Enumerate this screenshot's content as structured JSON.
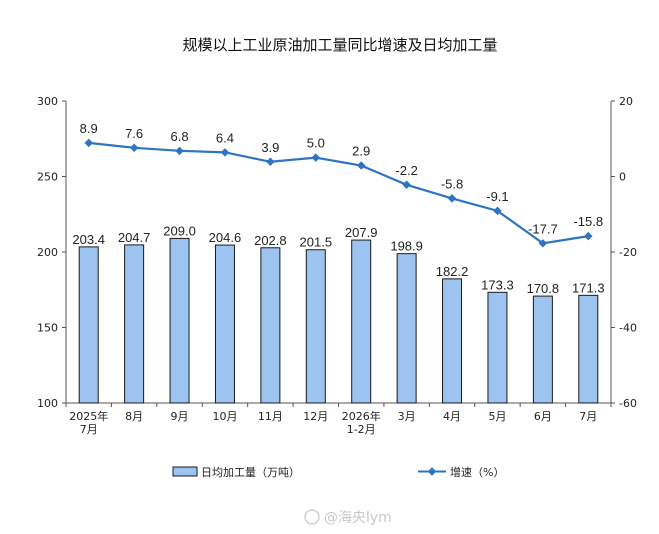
{
  "chart_data": {
    "type": "bar",
    "title": "规模以上工业原油加工量同比增速及日均加工量",
    "categories": [
      [
        "2025年",
        "7月"
      ],
      [
        "8月"
      ],
      [
        "9月"
      ],
      [
        "10月"
      ],
      [
        "11月"
      ],
      [
        "12月"
      ],
      [
        "2026年",
        "1-2月"
      ],
      [
        "3月"
      ],
      [
        "4月"
      ],
      [
        "5月"
      ],
      [
        "6月"
      ],
      [
        "7月"
      ]
    ],
    "series": [
      {
        "name": "日均加工量（万吨）",
        "type": "bar",
        "axis": "left",
        "values": [
          203.4,
          204.7,
          209.0,
          204.6,
          202.8,
          201.5,
          207.9,
          198.9,
          182.2,
          173.3,
          170.8,
          171.3
        ],
        "labels": [
          "203.4",
          "204.7",
          "209.0",
          "204.6",
          "202.8",
          "201.5",
          "207.9",
          "198.9",
          "182.2",
          "173.3",
          "170.8",
          "171.3"
        ],
        "color": "#9dc3f0",
        "edge": "#1a1a1a"
      },
      {
        "name": "增速（%）",
        "type": "line",
        "axis": "right",
        "values": [
          8.9,
          7.6,
          6.8,
          6.4,
          3.9,
          5.0,
          2.9,
          -2.2,
          -5.8,
          -9.1,
          -17.7,
          -15.8
        ],
        "labels": [
          "8.9",
          "7.6",
          "6.8",
          "6.4",
          "3.9",
          "5.0",
          "2.9",
          "-2.2",
          "-5.8",
          "-9.1",
          "-17.7",
          "-15.8"
        ],
        "color": "#2f74c0"
      }
    ],
    "y_left": {
      "ylim": [
        100,
        300
      ],
      "ticks": [
        "100",
        "150",
        "200",
        "250",
        "300"
      ]
    },
    "y_right": {
      "ylim": [
        -60,
        20
      ],
      "ticks": [
        "-60",
        "-40",
        "-20",
        "0",
        "20"
      ]
    },
    "grid": false,
    "legend_position": "bottom"
  },
  "watermark": "@海央lym"
}
